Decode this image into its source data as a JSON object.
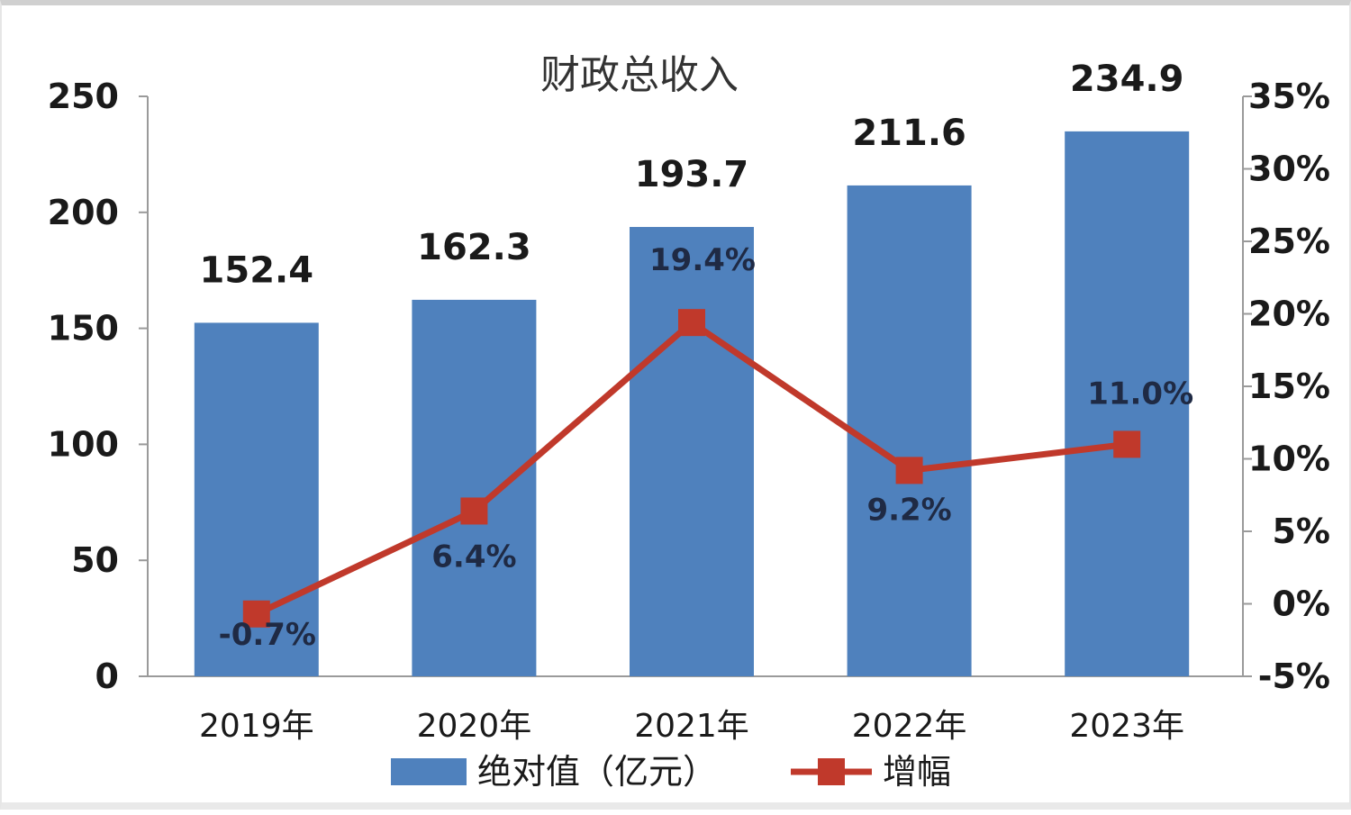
{
  "chart_data": {
    "type": "bar",
    "title": "财政总收入",
    "categories": [
      "2019年",
      "2020年",
      "2021年",
      "2022年",
      "2023年"
    ],
    "series": [
      {
        "name": "绝对值（亿元）",
        "type": "bar",
        "axis": "left",
        "values": [
          152.4,
          162.3,
          193.7,
          211.6,
          234.9
        ],
        "labels": [
          "152.4",
          "162.3",
          "193.7",
          "211.6",
          "234.9"
        ]
      },
      {
        "name": "增幅",
        "type": "line",
        "axis": "right",
        "values": [
          -0.7,
          6.4,
          19.4,
          9.2,
          11.0
        ],
        "labels": [
          "-0.7%",
          "6.4%",
          "19.4%",
          "9.2%",
          "11.0%"
        ]
      }
    ],
    "y_left": {
      "ylim": [
        0,
        250
      ],
      "ticks": [
        "0",
        "50",
        "100",
        "150",
        "200",
        "250"
      ]
    },
    "y_right": {
      "ylim": [
        -5,
        35
      ],
      "ticks": [
        "-5%",
        "0%",
        "5%",
        "10%",
        "15%",
        "20%",
        "25%",
        "30%",
        "35%"
      ]
    },
    "grid": false,
    "legend_position": "bottom",
    "colors": {
      "bar": "#4f81bd",
      "line": "#c0392b"
    }
  }
}
